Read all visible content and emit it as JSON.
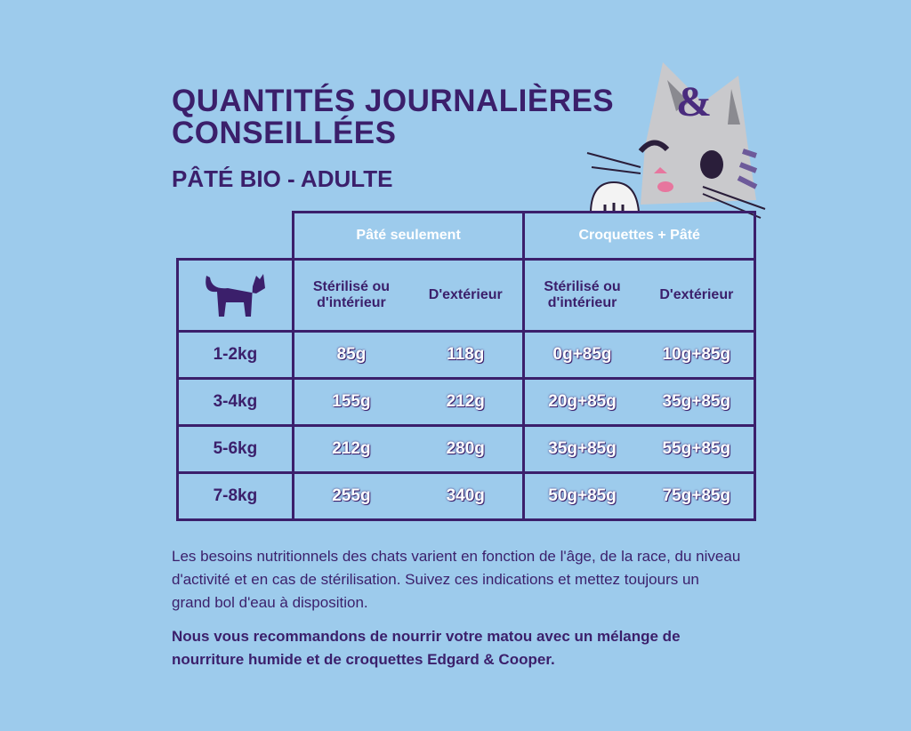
{
  "header": {
    "title_lines": [
      "QUANTITÉS JOURNALIÈRES",
      "CONSEILLÉES"
    ],
    "subtitle": "PÂTÉ BIO - ADULTE"
  },
  "table": {
    "groups": [
      "Pâté seulement",
      "Croquettes + Pâté"
    ],
    "columns": [
      "Stérilisé ou d'intérieur",
      "D'extérieur",
      "Stérilisé ou d'intérieur",
      "D'extérieur"
    ],
    "rows": [
      [
        "1-2kg",
        "85g",
        "118g",
        "0g+85g",
        "10g+85g"
      ],
      [
        "3-4kg",
        "155g",
        "212g",
        "20g+85g",
        "35g+85g"
      ],
      [
        "5-6kg",
        "212g",
        "280g",
        "35g+85g",
        "55g+85g"
      ],
      [
        "7-8kg",
        "255g",
        "340g",
        "50g+85g",
        "75g+85g"
      ]
    ]
  },
  "notes": [
    "Les besoins nutritionnels des chats varient en fonction de l'âge, de la race, du niveau d'activité et en cas de stérilisation. Suivez ces indications et mettez toujours un grand bol d'eau à disposition.",
    "Nous vous recommandons de nourrir votre matou avec un mélange de nourriture humide et de croquettes Edgard & Cooper."
  ]
}
